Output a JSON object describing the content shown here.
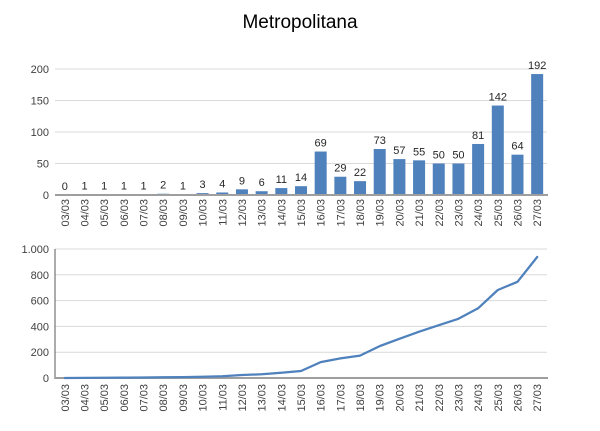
{
  "title": "Metropolitana",
  "colors": {
    "bar": "#4F81BD",
    "line": "#4F81BD",
    "gridline": "#D9D9D9",
    "baseline": "#9E9E9E",
    "vertical_axis": "#595959",
    "tick_label": "#404040",
    "data_label": "#262626"
  },
  "chart_data": [
    {
      "type": "bar",
      "title": "Metropolitana",
      "categories": [
        "03/03",
        "04/03",
        "05/03",
        "06/03",
        "07/03",
        "08/03",
        "09/03",
        "10/03",
        "11/03",
        "12/03",
        "13/03",
        "14/03",
        "15/03",
        "16/03",
        "17/03",
        "18/03",
        "19/03",
        "20/03",
        "21/03",
        "22/03",
        "23/03",
        "24/03",
        "25/03",
        "26/03",
        "27/03"
      ],
      "values": [
        0,
        1,
        1,
        1,
        1,
        2,
        1,
        3,
        4,
        9,
        6,
        11,
        14,
        69,
        29,
        22,
        73,
        57,
        55,
        50,
        50,
        81,
        142,
        64,
        192
      ],
      "data_labels": true,
      "xlabel": "",
      "ylabel": "",
      "ylim": [
        0,
        200
      ],
      "yticks": [
        0,
        50,
        100,
        150,
        200
      ],
      "ytick_labels": [
        "0",
        "50",
        "100",
        "150",
        "200"
      ],
      "grid": true,
      "legend": "none"
    },
    {
      "type": "line",
      "title": "",
      "categories": [
        "03/03",
        "04/03",
        "05/03",
        "06/03",
        "07/03",
        "08/03",
        "09/03",
        "10/03",
        "11/03",
        "12/03",
        "13/03",
        "14/03",
        "15/03",
        "16/03",
        "17/03",
        "18/03",
        "19/03",
        "20/03",
        "21/03",
        "22/03",
        "23/03",
        "24/03",
        "25/03",
        "26/03",
        "27/03"
      ],
      "values": [
        0,
        1,
        2,
        3,
        4,
        6,
        7,
        10,
        14,
        23,
        29,
        40,
        54,
        123,
        152,
        174,
        247,
        304,
        359,
        409,
        459,
        540,
        682,
        746,
        938
      ],
      "data_labels": false,
      "xlabel": "",
      "ylabel": "",
      "ylim": [
        0,
        1000
      ],
      "yticks": [
        0,
        200,
        400,
        600,
        800,
        1000
      ],
      "ytick_labels": [
        "0",
        "200",
        "400",
        "600",
        "800",
        "1.000"
      ],
      "grid": true,
      "legend": "none"
    }
  ]
}
